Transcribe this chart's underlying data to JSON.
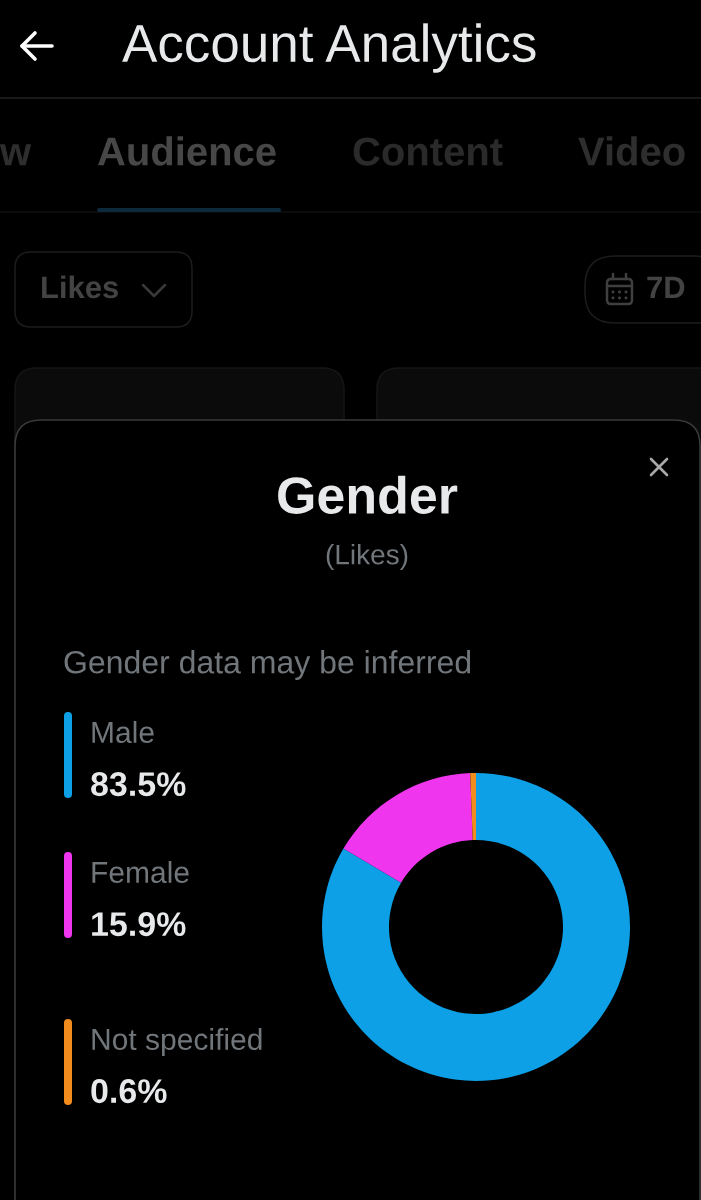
{
  "chart_data": {
    "type": "donut",
    "title": "Gender",
    "subtitle": "(Likes)",
    "categories": [
      "Male",
      "Female",
      "Not specified"
    ],
    "values": [
      83.5,
      15.9,
      0.6
    ],
    "colors": [
      "#0ea0e6",
      "#f035ef",
      "#f28c1c"
    ],
    "value_labels": [
      "83.5%",
      "15.9%",
      "0.6%"
    ],
    "legend": "left",
    "annotations": [
      "Account Analytics",
      "w",
      "Audience",
      "Content",
      "Video",
      "Likes",
      "7D",
      "Gender data may be inferred"
    ]
  }
}
